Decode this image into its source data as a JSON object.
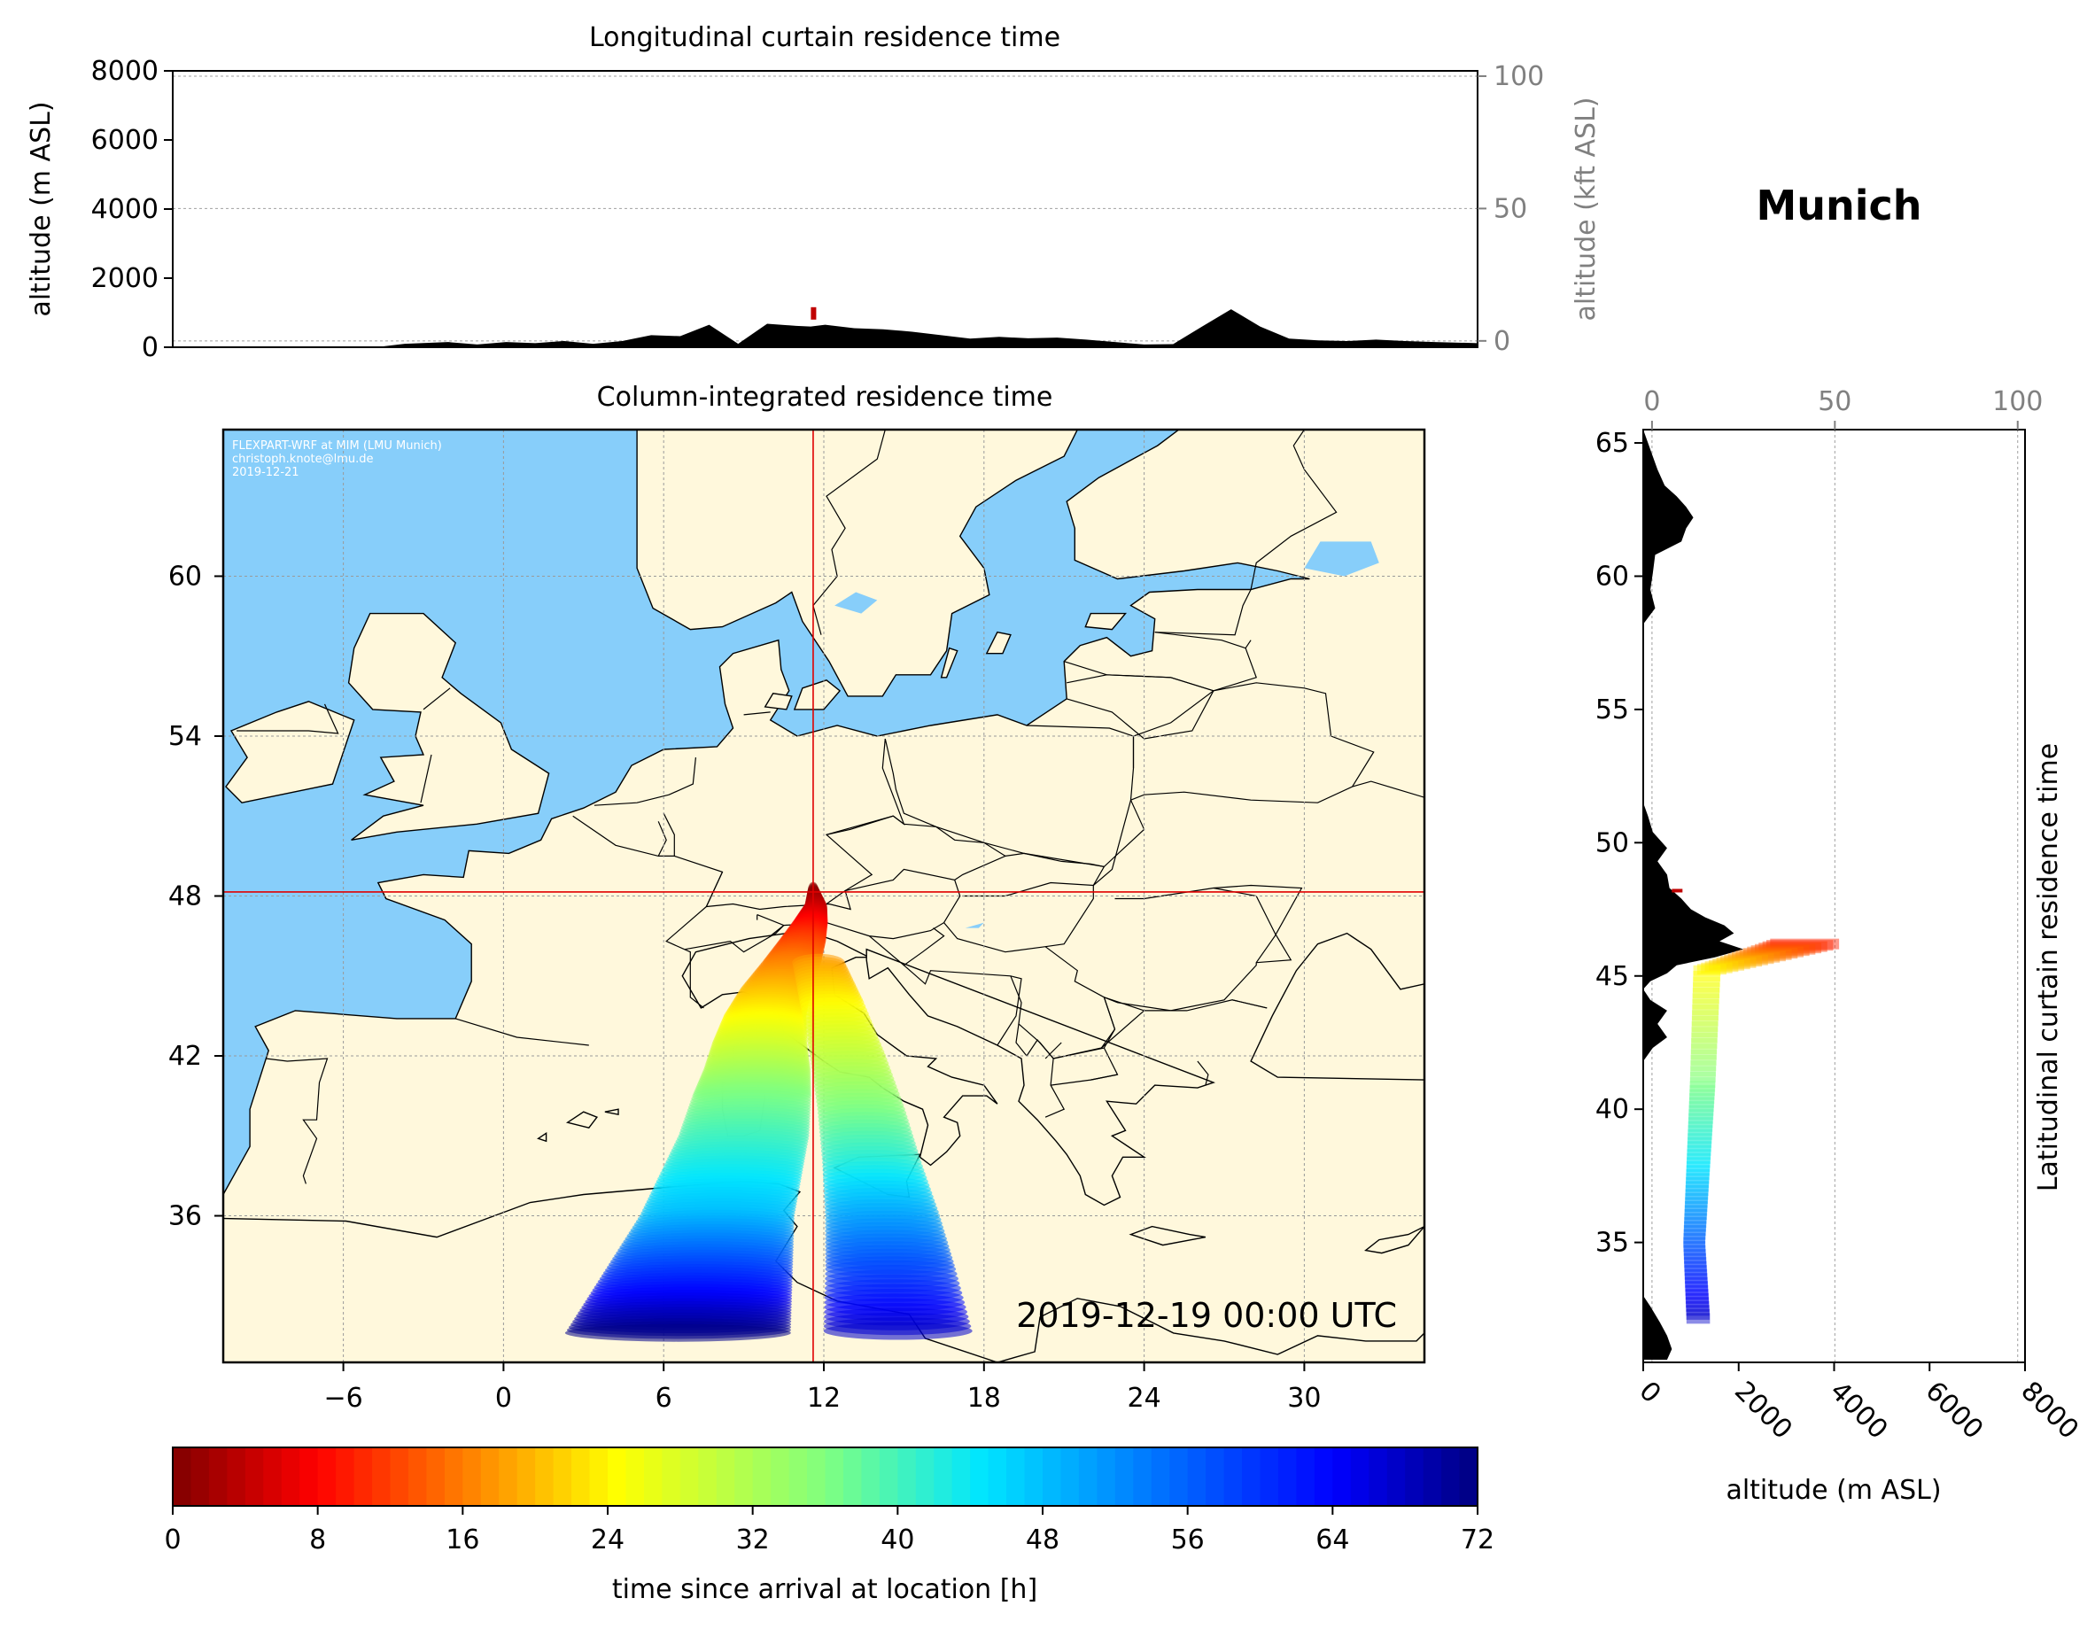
{
  "location_title": "Munich",
  "chart_data": [
    {
      "type": "area",
      "name": "longitudinal-curtain",
      "title": "Longitudinal curtain residence time",
      "xlabel": "",
      "ylabel": "altitude (m ASL)",
      "ylabel_right": "altitude (kft ASL)",
      "ylim": [
        0,
        8000
      ],
      "yticks": [
        0,
        2000,
        4000,
        6000,
        8000
      ],
      "ylim_right_kft": [
        -2.4,
        102
      ],
      "yticks_right": [
        0,
        50,
        100
      ],
      "xlim_lon": [
        -10.5,
        34.5
      ],
      "grid": true,
      "series": [
        {
          "role": "terrain",
          "color": "#000000",
          "x_lon": [
            -10.5,
            -3.5,
            -2.5,
            -1,
            0,
            1,
            2,
            3,
            4,
            5,
            6,
            7,
            8,
            9,
            10,
            11,
            11.5,
            12,
            13,
            14,
            15,
            16,
            17,
            18,
            19,
            20,
            21,
            22,
            23,
            24,
            25,
            26,
            27,
            28,
            29,
            30,
            31,
            32,
            33,
            34.5
          ],
          "elevation_m": [
            0,
            0,
            100,
            150,
            80,
            150,
            120,
            180,
            100,
            180,
            350,
            320,
            650,
            100,
            680,
            620,
            600,
            650,
            550,
            520,
            450,
            350,
            250,
            300,
            260,
            280,
            220,
            150,
            80,
            90,
            600,
            1100,
            600,
            250,
            200,
            180,
            220,
            180,
            150,
            120
          ]
        },
        {
          "role": "residence-time-marker",
          "color": "#c00000",
          "x_lon": [
            11.6
          ],
          "altitude_m": [
            800
          ]
        }
      ]
    },
    {
      "type": "heatmap",
      "name": "column-integrated-map",
      "title": "Column-integrated residence time",
      "xlim": [
        -10.5,
        34.5
      ],
      "ylim": [
        30.5,
        65.5
      ],
      "xticks": [
        -6,
        0,
        6,
        12,
        18,
        24,
        30
      ],
      "yticks": [
        36,
        42,
        48,
        54,
        60
      ],
      "grid": true,
      "release_location": {
        "lon": 11.6,
        "lat": 48.15
      },
      "annotation_credit": [
        "FLEXPART-WRF at MIM (LMU Munich)",
        "christoph.knote@lmu.de",
        "2019-12-21"
      ],
      "timestamp": "2019-12-19 00:00 UTC",
      "colors": {
        "ocean": "#87cefa",
        "land": "#fff8dc",
        "crosshair": "#e00000",
        "border": "#000000"
      },
      "plume": {
        "lon": [
          11.6,
          11.7,
          11.5,
          11.2,
          10.8,
          10.2,
          9.8,
          9.6,
          9.5,
          9.3,
          9.0,
          8.5,
          8.0,
          7.5,
          7.0,
          6.5
        ],
        "lat": [
          48.2,
          47.6,
          47.0,
          46.3,
          45.5,
          44.5,
          43.5,
          42.5,
          41.5,
          40.5,
          39.0,
          37.5,
          36.0,
          34.5,
          33.0,
          31.5
        ],
        "hours": [
          0,
          4,
          8,
          12,
          16,
          20,
          24,
          28,
          32,
          36,
          40,
          44,
          48,
          56,
          64,
          72
        ],
        "east_branch_lon": [
          11.8,
          12.3,
          12.9,
          13.4,
          13.8,
          14.2,
          14.5,
          14.8
        ],
        "east_branch_lat": [
          45.5,
          44.0,
          42.0,
          40.0,
          38.0,
          36.0,
          34.0,
          31.5
        ],
        "east_branch_hours": [
          18,
          24,
          30,
          36,
          42,
          50,
          58,
          68
        ]
      }
    },
    {
      "type": "area",
      "name": "latitudinal-curtain",
      "ylabel": "Latitudinal curtain residence time",
      "xlabel": "altitude (m ASL)",
      "xlim": [
        0,
        8000
      ],
      "xticks": [
        0,
        2000,
        4000,
        6000,
        8000
      ],
      "xlim_top_kft": [
        -2.4,
        102
      ],
      "xticks_top": [
        0,
        50,
        100
      ],
      "ylim": [
        30.5,
        65.5
      ],
      "yticks": [
        35,
        40,
        45,
        50,
        55,
        60,
        65
      ],
      "grid": true,
      "series": [
        {
          "role": "terrain",
          "color": "#000000",
          "lat": [
            30.6,
            31.0,
            31.5,
            32.0,
            32.6,
            33.0,
            41.8,
            42.3,
            42.7,
            43.2,
            43.7,
            44.1,
            44.5,
            44.8,
            45.1,
            45.4,
            45.7,
            46.0,
            46.3,
            46.6,
            46.9,
            47.2,
            47.5,
            47.9,
            48.3,
            48.8,
            49.3,
            49.8,
            50.4,
            51.0,
            51.5,
            58.2,
            58.8,
            59.5,
            60.1,
            60.8,
            61.3,
            61.8,
            62.2,
            62.6,
            63.0,
            63.4,
            64.0,
            64.5,
            65.0,
            65.5
          ],
          "elevation_m": [
            500,
            600,
            500,
            350,
            150,
            0,
            0,
            200,
            500,
            300,
            500,
            150,
            0,
            150,
            500,
            700,
            1500,
            2100,
            1600,
            1900,
            1700,
            1300,
            1000,
            800,
            550,
            500,
            300,
            500,
            200,
            100,
            0,
            0,
            250,
            150,
            200,
            250,
            800,
            900,
            1050,
            900,
            700,
            450,
            300,
            200,
            100,
            0
          ]
        },
        {
          "role": "residence-time",
          "altitude_m": [
            3800,
            1500,
            1400,
            1300,
            1200,
            1300
          ],
          "lat": [
            46.2,
            45.2,
            41.0,
            38.0,
            35.0,
            32.0
          ],
          "hours": [
            10,
            24,
            36,
            44,
            56,
            68
          ]
        }
      ]
    },
    {
      "type": "colorbar",
      "name": "time-colorbar",
      "xlabel": "time since arrival at location [h]",
      "range": [
        0,
        72
      ],
      "ticks": [
        0,
        8,
        16,
        24,
        32,
        40,
        48,
        56,
        64,
        72
      ],
      "colormap": "jet_r",
      "levels": 72
    }
  ]
}
